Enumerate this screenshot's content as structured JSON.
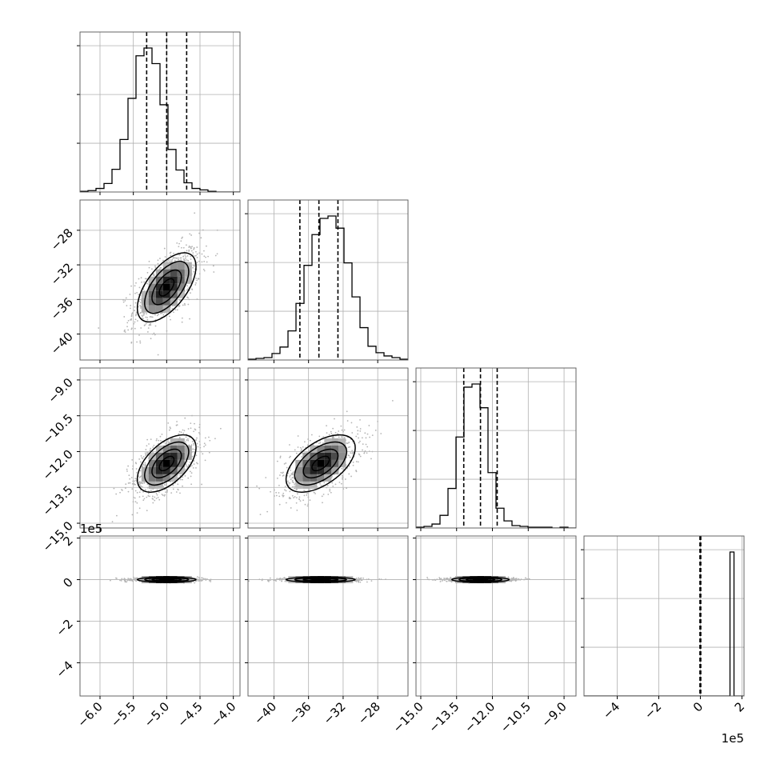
{
  "chart_data": {
    "type": "corner",
    "title": "",
    "grid": true,
    "parameters": [
      {
        "range": [
          -6.3,
          -3.9
        ],
        "ticks": [
          -6.0,
          -5.5,
          -5.0,
          -4.5,
          -4.0
        ],
        "tick_labels": [
          "−6.0",
          "−5.5",
          "−5.0",
          "−4.5",
          "−4.0"
        ],
        "quantiles": [
          -5.3,
          -5.0,
          -4.7
        ],
        "mean": -5.0,
        "sd": 0.22,
        "histogram": [
          1,
          2,
          5,
          12,
          32,
          74,
          132,
          192,
          203,
          181,
          123,
          60,
          31,
          13,
          5,
          3,
          1,
          0,
          0,
          0
        ],
        "exponent_label": ""
      },
      {
        "range": [
          -43,
          -24.5
        ],
        "ticks": [
          -40,
          -36,
          -32,
          -28
        ],
        "tick_labels": [
          "−40",
          "−36",
          "−32",
          "−28"
        ],
        "quantiles": [
          -37,
          -34.8,
          -32.6
        ],
        "mean": -34.6,
        "sd": 2.0,
        "histogram": [
          1,
          2,
          3,
          8,
          16,
          36,
          70,
          117,
          155,
          175,
          178,
          163,
          120,
          78,
          40,
          17,
          9,
          5,
          3,
          1
        ],
        "exponent_label": ""
      },
      {
        "range": [
          -15.2,
          -8.5
        ],
        "ticks": [
          -15.0,
          -13.5,
          -12.0,
          -10.5,
          -9.0
        ],
        "tick_labels": [
          "−15.0",
          "−13.5",
          "−12.0",
          "−10.5",
          "−9.0"
        ],
        "quantiles": [
          -13.2,
          -12.5,
          -11.8
        ],
        "mean": -12.5,
        "sd": 0.6,
        "histogram": [
          1,
          2,
          5,
          16,
          50,
          115,
          178,
          182,
          152,
          70,
          25,
          9,
          3,
          2,
          1,
          1,
          1,
          0,
          1,
          0
        ],
        "exponent_label": ""
      },
      {
        "range": [
          -560000,
          210000
        ],
        "ticks": [
          -400000,
          -200000,
          0,
          200000
        ],
        "tick_labels": [
          "−4",
          "−2",
          "0",
          "2"
        ],
        "quantiles": [
          -2000,
          0,
          2000
        ],
        "mean": 0,
        "sd": 4000,
        "histogram": [
          0,
          0,
          0,
          0,
          0,
          0,
          0,
          0,
          0,
          0,
          0,
          0,
          0,
          0,
          0,
          0,
          0,
          0,
          0,
          0,
          0,
          0,
          0,
          0,
          0,
          0,
          0,
          0,
          0,
          0,
          0,
          0,
          0,
          0,
          0,
          0,
          0,
          0,
          0,
          0,
          0,
          0,
          0,
          0,
          0,
          0,
          0,
          0,
          0,
          0,
          0,
          0,
          0,
          0,
          0,
          0,
          0,
          0,
          0,
          0,
          0,
          0,
          0,
          0,
          0,
          0,
          0,
          0,
          0,
          0,
          0,
          0,
          0,
          1000,
          1000,
          0,
          0,
          0,
          0,
          0
        ],
        "exponent_label": "1e5"
      }
    ],
    "correlations": [
      [
        1,
        0.6,
        0.55,
        0
      ],
      [
        0.6,
        1,
        0.55,
        0
      ],
      [
        0.55,
        0.55,
        1,
        0
      ],
      [
        0,
        0,
        0,
        1
      ]
    ],
    "sample_points": 900
  }
}
